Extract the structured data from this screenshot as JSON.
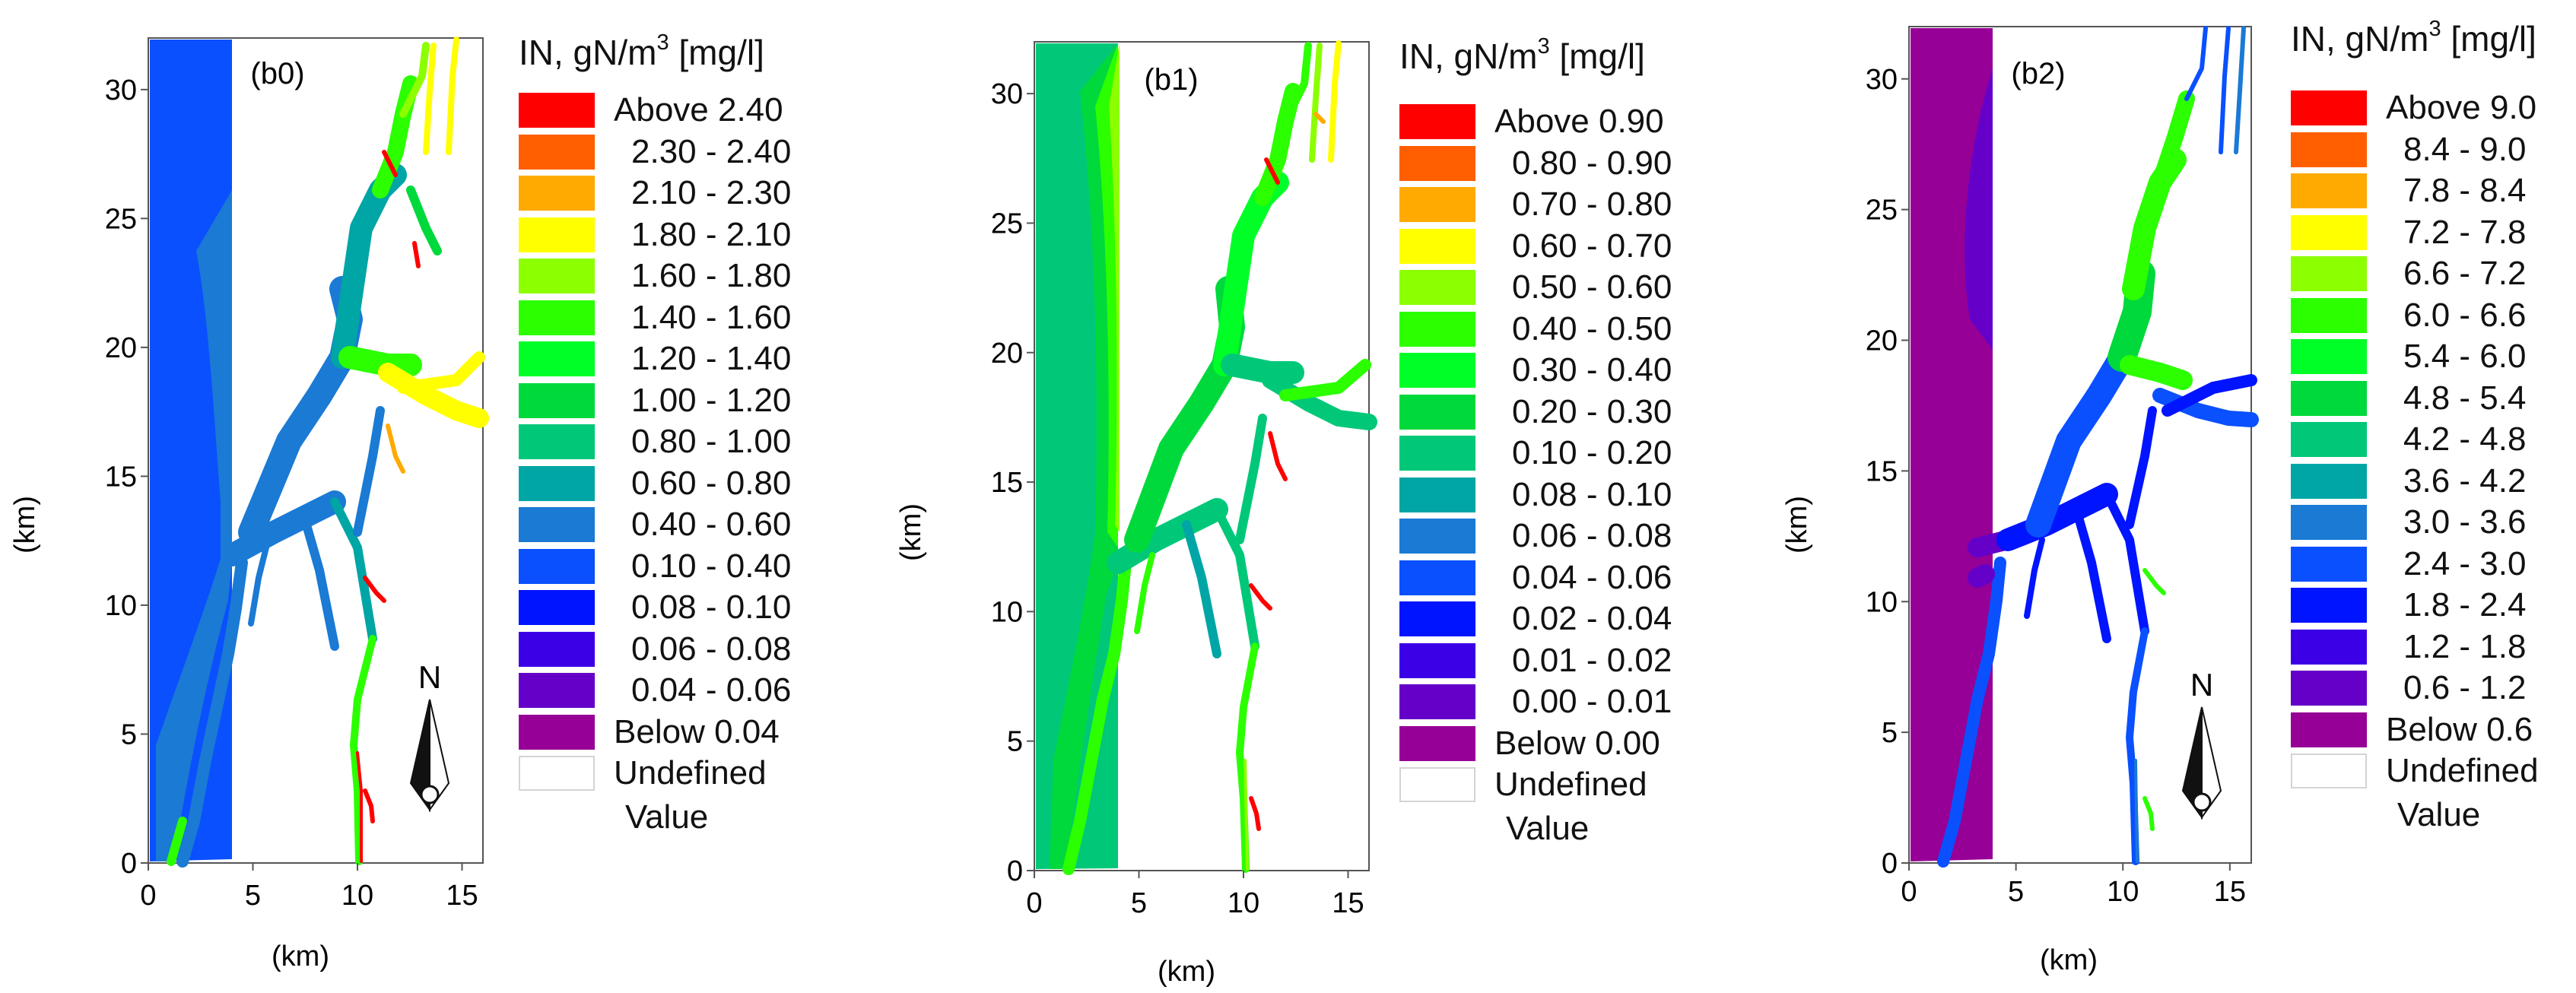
{
  "chart_data": [
    {
      "type": "heatmap",
      "panel_label": "(b0)",
      "xlabel": "(km)",
      "ylabel": "(km)",
      "xlim": [
        0,
        16
      ],
      "ylim": [
        0,
        32
      ],
      "x_ticks": [
        "0",
        "5",
        "10",
        "15"
      ],
      "y_ticks": [
        "0",
        "5",
        "10",
        "15",
        "20",
        "25",
        "30"
      ],
      "north_label": "N",
      "legend": {
        "title_main": "IN, gN/m",
        "title_sup": "3",
        "title_unit": "[mg/l]",
        "items": [
          {
            "label": "Above 2.40",
            "color": "#ff0000"
          },
          {
            "label": "2.30 - 2.40",
            "color": "#ff5f00"
          },
          {
            "label": "2.10 - 2.30",
            "color": "#ffaa00"
          },
          {
            "label": "1.80 - 2.10",
            "color": "#ffff00"
          },
          {
            "label": "1.60 - 1.80",
            "color": "#8cff00"
          },
          {
            "label": "1.40 - 1.60",
            "color": "#2bff00"
          },
          {
            "label": "1.20 - 1.40",
            "color": "#00ff27"
          },
          {
            "label": "1.00 - 1.20",
            "color": "#00d93c"
          },
          {
            "label": "0.80 - 1.00",
            "color": "#00c878"
          },
          {
            "label": "0.60 - 0.80",
            "color": "#00a5a5"
          },
          {
            "label": "0.40 - 0.60",
            "color": "#1a7ad4"
          },
          {
            "label": "0.10 - 0.40",
            "color": "#0a50ff"
          },
          {
            "label": "0.08 - 0.10",
            "color": "#0014ff"
          },
          {
            "label": "0.06 - 0.08",
            "color": "#3c00e6"
          },
          {
            "label": "0.04 - 0.06",
            "color": "#6400c8"
          },
          {
            "label": "Below 0.04",
            "color": "#960096"
          }
        ],
        "undefined_label_1": "Undefined",
        "undefined_label_2": "Value"
      }
    },
    {
      "type": "heatmap",
      "panel_label": "(b1)",
      "xlabel": "(km)",
      "ylabel": "(km)",
      "xlim": [
        0,
        16
      ],
      "ylim": [
        0,
        32
      ],
      "x_ticks": [
        "0",
        "5",
        "10",
        "15"
      ],
      "y_ticks": [
        "0",
        "5",
        "10",
        "15",
        "20",
        "25",
        "30"
      ],
      "north_label": "",
      "legend": {
        "title_main": "IN, gN/m",
        "title_sup": "3",
        "title_unit": "[mg/l]",
        "items": [
          {
            "label": "Above 0.90",
            "color": "#ff0000"
          },
          {
            "label": "0.80 - 0.90",
            "color": "#ff5f00"
          },
          {
            "label": "0.70 - 0.80",
            "color": "#ffaa00"
          },
          {
            "label": "0.60 - 0.70",
            "color": "#ffff00"
          },
          {
            "label": "0.50 - 0.60",
            "color": "#8cff00"
          },
          {
            "label": "0.40 - 0.50",
            "color": "#2bff00"
          },
          {
            "label": "0.30 - 0.40",
            "color": "#00ff27"
          },
          {
            "label": "0.20 - 0.30",
            "color": "#00d93c"
          },
          {
            "label": "0.10 - 0.20",
            "color": "#00c878"
          },
          {
            "label": "0.08 - 0.10",
            "color": "#00a5a5"
          },
          {
            "label": "0.06 - 0.08",
            "color": "#1a7ad4"
          },
          {
            "label": "0.04 - 0.06",
            "color": "#0a50ff"
          },
          {
            "label": "0.02 - 0.04",
            "color": "#0014ff"
          },
          {
            "label": "0.01 - 0.02",
            "color": "#3c00e6"
          },
          {
            "label": "0.00 - 0.01",
            "color": "#6400c8"
          },
          {
            "label": "Below 0.00",
            "color": "#960096"
          }
        ],
        "undefined_label_1": "Undefined",
        "undefined_label_2": "Value"
      }
    },
    {
      "type": "heatmap",
      "panel_label": "(b2)",
      "xlabel": "(km)",
      "ylabel": "(km)",
      "xlim": [
        0,
        16
      ],
      "ylim": [
        0,
        32
      ],
      "x_ticks": [
        "0",
        "5",
        "10",
        "15"
      ],
      "y_ticks": [
        "0",
        "5",
        "10",
        "15",
        "20",
        "25",
        "30"
      ],
      "north_label": "N",
      "legend": {
        "title_main": "IN, gN/m",
        "title_sup": "3",
        "title_unit": "[mg/l]",
        "items": [
          {
            "label": "Above 9.0",
            "color": "#ff0000"
          },
          {
            "label": "8.4 - 9.0",
            "color": "#ff5f00"
          },
          {
            "label": "7.8 - 8.4",
            "color": "#ffaa00"
          },
          {
            "label": "7.2 - 7.8",
            "color": "#ffff00"
          },
          {
            "label": "6.6 - 7.2",
            "color": "#8cff00"
          },
          {
            "label": "6.0 - 6.6",
            "color": "#2bff00"
          },
          {
            "label": "5.4 - 6.0",
            "color": "#00ff27"
          },
          {
            "label": "4.8 - 5.4",
            "color": "#00d93c"
          },
          {
            "label": "4.2 - 4.8",
            "color": "#00c878"
          },
          {
            "label": "3.6 - 4.2",
            "color": "#00a5a5"
          },
          {
            "label": "3.0 - 3.6",
            "color": "#1a7ad4"
          },
          {
            "label": "2.4 - 3.0",
            "color": "#0a50ff"
          },
          {
            "label": "1.8 - 2.4",
            "color": "#0014ff"
          },
          {
            "label": "1.2 - 1.8",
            "color": "#3c00e6"
          },
          {
            "label": "0.6 - 1.2",
            "color": "#6400c8"
          },
          {
            "label": "Below 0.6",
            "color": "#960096"
          }
        ],
        "undefined_label_1": "Undefined",
        "undefined_label_2": "Value"
      }
    }
  ]
}
